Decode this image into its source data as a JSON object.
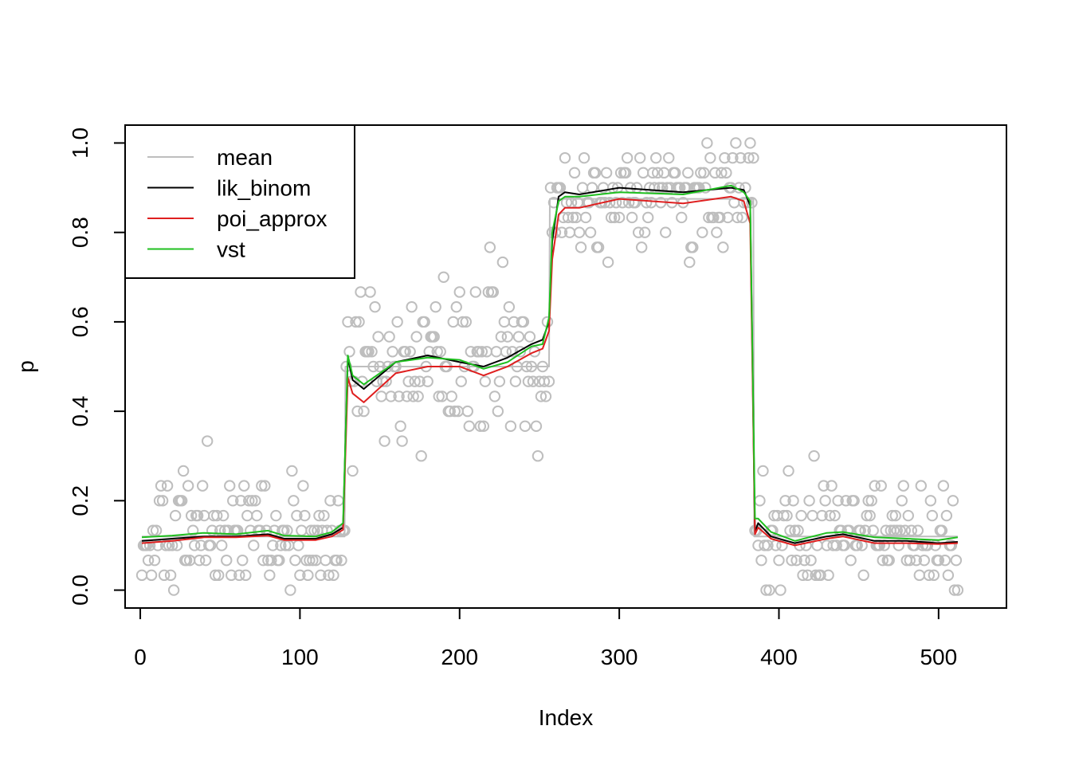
{
  "chart_data": {
    "type": "scatter",
    "xlabel": "Index",
    "ylabel": "p",
    "xlim": [
      -9.5,
      542.5
    ],
    "ylim": [
      -0.04,
      1.04
    ],
    "x_ticks": [
      0,
      100,
      200,
      300,
      400,
      500
    ],
    "y_ticks": [
      0.0,
      0.2,
      0.4,
      0.6,
      0.8,
      1.0
    ],
    "x_tick_labels": [
      "0",
      "100",
      "200",
      "300",
      "400",
      "500"
    ],
    "y_tick_labels": [
      "0.0",
      "0.2",
      "0.4",
      "0.6",
      "0.8",
      "1.0"
    ],
    "grid": false,
    "legend_position": "top-left",
    "legend": [
      {
        "name": "mean",
        "color": "#BEBEBE"
      },
      {
        "name": "lik_binom",
        "color": "#000000"
      },
      {
        "name": "poi_approx",
        "color": "#DF1F1F"
      },
      {
        "name": "vst",
        "color": "#1FBF1F"
      }
    ],
    "points_color": "#BEBEBE",
    "points": {
      "description_of_levels": "observed proportions of binomial counts (n=30) around a piecewise-constant mean",
      "segments": [
        {
          "x_start": 1,
          "x_end": 128,
          "mean": 0.12
        },
        {
          "x_start": 129,
          "x_end": 256,
          "mean": 0.5
        },
        {
          "x_start": 257,
          "x_end": 384,
          "mean": 0.875
        },
        {
          "x_start": 385,
          "x_end": 512,
          "mean": 0.12
        }
      ]
    },
    "series": [
      {
        "name": "mean",
        "color": "#BEBEBE",
        "x": [
          1,
          128,
          128.5,
          256,
          256.5,
          384,
          384.5,
          512
        ],
        "y": [
          0.12,
          0.12,
          0.5,
          0.5,
          0.875,
          0.875,
          0.12,
          0.12
        ]
      },
      {
        "name": "lik_binom",
        "color": "#000000",
        "x": [
          1,
          20,
          40,
          60,
          80,
          90,
          110,
          120,
          127,
          130,
          133,
          140,
          160,
          180,
          200,
          215,
          230,
          245,
          252,
          256,
          258,
          262,
          266,
          275,
          300,
          340,
          370,
          378,
          382,
          385,
          387,
          395,
          410,
          430,
          440,
          460,
          480,
          500,
          512
        ],
        "y": [
          0.11,
          0.115,
          0.12,
          0.12,
          0.125,
          0.115,
          0.115,
          0.125,
          0.14,
          0.52,
          0.47,
          0.45,
          0.51,
          0.525,
          0.51,
          0.5,
          0.52,
          0.55,
          0.56,
          0.6,
          0.78,
          0.88,
          0.89,
          0.885,
          0.9,
          0.89,
          0.9,
          0.895,
          0.86,
          0.13,
          0.15,
          0.12,
          0.105,
          0.12,
          0.125,
          0.11,
          0.11,
          0.105,
          0.108
        ]
      },
      {
        "name": "poi_approx",
        "color": "#DF1F1F",
        "x": [
          1,
          20,
          40,
          60,
          80,
          90,
          110,
          120,
          127,
          130,
          133,
          140,
          160,
          180,
          200,
          215,
          230,
          245,
          252,
          256,
          258,
          262,
          266,
          275,
          300,
          340,
          370,
          378,
          382,
          385,
          387,
          395,
          410,
          430,
          440,
          460,
          480,
          500,
          512
        ],
        "y": [
          0.105,
          0.11,
          0.118,
          0.118,
          0.122,
          0.112,
          0.112,
          0.12,
          0.135,
          0.475,
          0.44,
          0.42,
          0.485,
          0.5,
          0.5,
          0.48,
          0.5,
          0.53,
          0.54,
          0.58,
          0.74,
          0.84,
          0.855,
          0.855,
          0.875,
          0.865,
          0.88,
          0.87,
          0.82,
          0.125,
          0.14,
          0.115,
          0.1,
          0.115,
          0.12,
          0.105,
          0.105,
          0.103,
          0.105
        ]
      },
      {
        "name": "vst",
        "color": "#1FBF1F",
        "x": [
          1,
          20,
          40,
          60,
          80,
          90,
          110,
          120,
          127,
          130,
          133,
          140,
          160,
          180,
          200,
          215,
          230,
          245,
          252,
          256,
          258,
          262,
          266,
          275,
          300,
          340,
          370,
          378,
          382,
          385,
          387,
          395,
          410,
          430,
          440,
          460,
          480,
          500,
          512
        ],
        "y": [
          0.118,
          0.122,
          0.128,
          0.125,
          0.133,
          0.122,
          0.12,
          0.13,
          0.15,
          0.525,
          0.48,
          0.46,
          0.51,
          0.52,
          0.515,
          0.495,
          0.51,
          0.545,
          0.55,
          0.61,
          0.8,
          0.87,
          0.88,
          0.88,
          0.89,
          0.885,
          0.905,
          0.89,
          0.87,
          0.16,
          0.16,
          0.13,
          0.11,
          0.128,
          0.13,
          0.118,
          0.115,
          0.112,
          0.118
        ]
      }
    ]
  }
}
